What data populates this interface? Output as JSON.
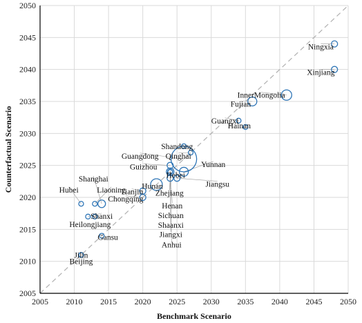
{
  "chart_data": {
    "type": "scatter",
    "title": "",
    "xlabel": "Benchmark Scenario",
    "ylabel": "Counterfactual Scenario",
    "xlim": [
      2005,
      2050
    ],
    "ylim": [
      2005,
      2050
    ],
    "xticks": [
      2005,
      2010,
      2015,
      2020,
      2025,
      2030,
      2035,
      2040,
      2045,
      2050
    ],
    "yticks": [
      2005,
      2010,
      2015,
      2020,
      2025,
      2030,
      2035,
      2040,
      2045,
      2050
    ],
    "grid": true,
    "reference_line": "y = x, dashed",
    "marker_color": "#2e75b6",
    "points": [
      {
        "name": "Ningxia",
        "x": 2048,
        "y": 2044,
        "size": 4,
        "label": "Ningxia",
        "lx": 2046.0,
        "ly": 2043.6
      },
      {
        "name": "Xinjiang",
        "x": 2048,
        "y": 2040,
        "size": 4,
        "label": "Xinjiang",
        "lx": 2046.0,
        "ly": 2039.6
      },
      {
        "name": "Inner Mongolia",
        "x": 2041,
        "y": 2036,
        "size": 7,
        "label": "InnerMongolia",
        "lx": 2037.3,
        "ly": 2036.0
      },
      {
        "name": "Fujian",
        "x": 2036,
        "y": 2035,
        "size": 6,
        "label": "Fujian",
        "lx": 2034.3,
        "ly": 2034.6
      },
      {
        "name": "Guangxi",
        "x": 2034,
        "y": 2032,
        "size": 3,
        "label": "Guangxi",
        "lx": 2032.0,
        "ly": 2032.0
      },
      {
        "name": "Hainan",
        "x": 2035,
        "y": 2031,
        "size": 3,
        "label": "Hainan",
        "lx": 2034.1,
        "ly": 2031.2
      },
      {
        "name": "Shandong",
        "x": 2026,
        "y": 2028,
        "size": 3,
        "label": "Shandong",
        "lx": 2025.0,
        "ly": 2028.0
      },
      {
        "name": "Qinghai",
        "x": 2027,
        "y": 2027,
        "size": 3,
        "label": "Qinghai",
        "lx": 2025.2,
        "ly": 2026.5
      },
      {
        "name": "Guangdong",
        "x": 2026,
        "y": 2026,
        "size": 18,
        "label": "Guangdong",
        "lx": 2019.6,
        "ly": 2026.5
      },
      {
        "name": "Guizhou",
        "x": 2024,
        "y": 2025,
        "size": 4,
        "label": "Guizhou",
        "lx": 2020.1,
        "ly": 2024.8
      },
      {
        "name": "Yunnan",
        "x": 2026,
        "y": 2024,
        "size": 6,
        "label": "Yunnan",
        "lx": 2030.3,
        "ly": 2025.2
      },
      {
        "name": "Hebei",
        "x": 2024,
        "y": 2024,
        "size": 5,
        "label": "Hebei",
        "lx": 2024.8,
        "ly": 2023.5
      },
      {
        "name": "Jiangsu",
        "x": 2025,
        "y": 2023,
        "size": 4,
        "label": "Jiangsu",
        "lx": 2030.9,
        "ly": 2022.1
      },
      {
        "name": "Zhejiang",
        "x": 2024,
        "y": 2023,
        "size": 4,
        "label": "Zhejiang",
        "lx": 2023.9,
        "ly": 2020.7
      },
      {
        "name": "Henan",
        "x": 2024,
        "y": 2024,
        "size": 3,
        "label": "Henan",
        "lx": 2024.3,
        "ly": 2018.7
      },
      {
        "name": "Sichuan",
        "x": 2024,
        "y": 2024,
        "size": 3,
        "label": "Sichuan",
        "lx": 2024.1,
        "ly": 2017.2
      },
      {
        "name": "Shaanxi",
        "x": 2024,
        "y": 2024,
        "size": 3,
        "label": "Shaanxi",
        "lx": 2024.1,
        "ly": 2015.7
      },
      {
        "name": "Jiangxi",
        "x": 2024,
        "y": 2024,
        "size": 3,
        "label": "Jiangxi",
        "lx": 2024.1,
        "ly": 2014.2
      },
      {
        "name": "Anhui",
        "x": 2024,
        "y": 2024,
        "size": 3,
        "label": "Anhui",
        "lx": 2024.2,
        "ly": 2012.6
      },
      {
        "name": "Hunan",
        "x": 2022,
        "y": 2022,
        "size": 8,
        "label": "Hunan",
        "lx": 2021.4,
        "ly": 2021.8
      },
      {
        "name": "Tianjin",
        "x": 2020,
        "y": 2021,
        "size": 4,
        "label": "Tianjin",
        "lx": 2018.4,
        "ly": 2020.9
      },
      {
        "name": "Chongqing",
        "x": 2020,
        "y": 2020,
        "size": 4,
        "label": "Chongqing",
        "lx": 2017.5,
        "ly": 2019.8
      },
      {
        "name": "Shanghai",
        "x": 2014,
        "y": 2019,
        "size": 5,
        "label": "Shanghai",
        "lx": 2012.8,
        "ly": 2022.9
      },
      {
        "name": "Hubei",
        "x": 2011,
        "y": 2019,
        "size": 3,
        "label": "Hubei",
        "lx": 2009.2,
        "ly": 2021.2
      },
      {
        "name": "Liaoning",
        "x": 2013,
        "y": 2019,
        "size": 3,
        "label": "Liaoning",
        "lx": 2015.4,
        "ly": 2021.2
      },
      {
        "name": "Shanxi",
        "x": 2012,
        "y": 2017,
        "size": 3,
        "label": "Shanxi",
        "lx": 2014.0,
        "ly": 2017.1
      },
      {
        "name": "Heilongjiang",
        "x": 2013,
        "y": 2017,
        "size": 3,
        "label": "Heilongjiang",
        "lx": 2012.3,
        "ly": 2015.8
      },
      {
        "name": "Gansu",
        "x": 2014,
        "y": 2014,
        "size": 3,
        "label": "Gansu",
        "lx": 2014.9,
        "ly": 2013.8
      },
      {
        "name": "Jilin",
        "x": 2011,
        "y": 2011,
        "size": 3,
        "label": "Jilin",
        "lx": 2011.0,
        "ly": 2011.0
      },
      {
        "name": "Beijing",
        "x": 2011,
        "y": 2011,
        "size": 3,
        "label": "Beijing",
        "lx": 2011.0,
        "ly": 2010.0
      }
    ]
  }
}
